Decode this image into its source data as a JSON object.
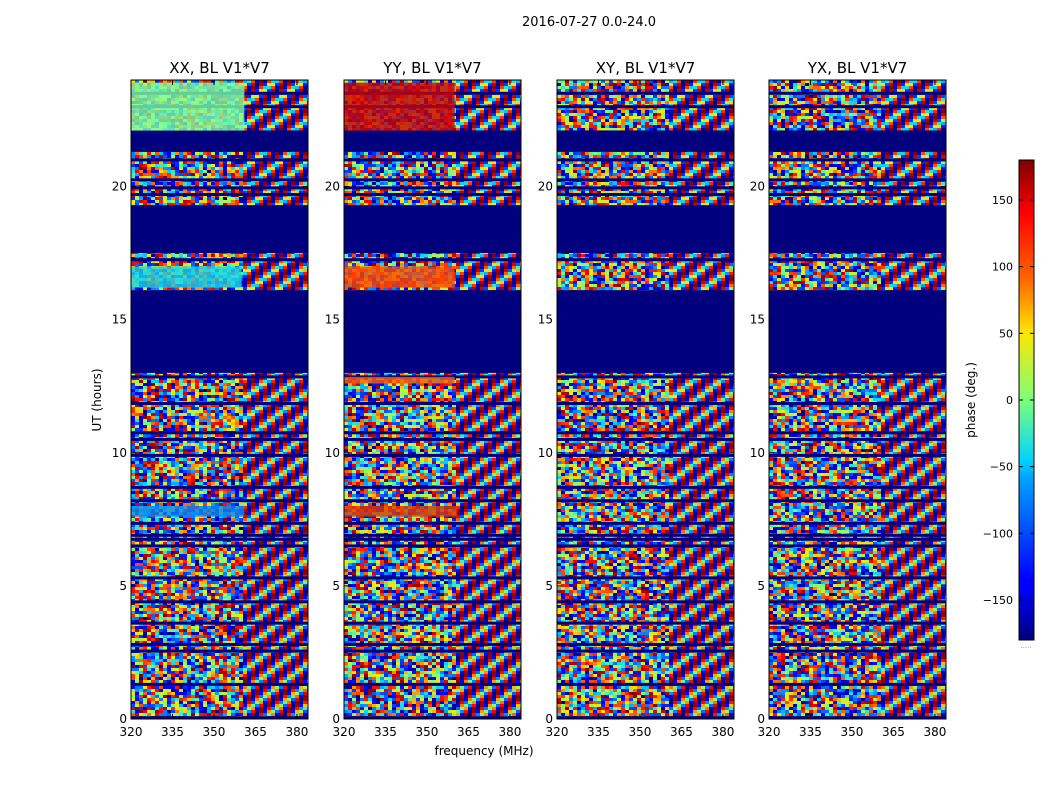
{
  "figure_title": "2016-07-27 0.0-24.0",
  "chart_data": {
    "type": "heatmap",
    "suptitle": "2016-07-27 0.0-24.0",
    "xlabel": "frequency (MHz)",
    "ylabel": "UT (hours)",
    "xlim": [
      320,
      384
    ],
    "ylim": [
      0,
      24
    ],
    "xticks": [
      320,
      335,
      350,
      365,
      380
    ],
    "yticks": [
      0,
      5,
      10,
      15,
      20
    ],
    "colormap": "jet",
    "colorbar": {
      "label": "phase (deg.)",
      "range": [
        -180,
        180
      ],
      "ticks": [
        -150,
        -100,
        -50,
        0,
        50,
        100,
        150
      ],
      "tick_labels": [
        "−150",
        "−100",
        "−50",
        "0",
        "50",
        "100",
        "150"
      ],
      "extra_label": "....."
    },
    "panels": [
      {
        "title": "XX, BL V1*V7",
        "bands": [
          {
            "y0": 13.0,
            "y1": 16.0,
            "fill": "#00007f"
          },
          {
            "y0": 17.5,
            "y1": 19.3,
            "fill": "#00007f"
          },
          {
            "y0": 21.3,
            "y1": 22.0,
            "fill": "#00007f"
          },
          {
            "y0": 16.2,
            "y1": 17.0,
            "fill": "#19d6e8",
            "x1": 360
          },
          {
            "y0": 22.1,
            "y1": 23.9,
            "fill": "#7cffa0",
            "x1": 361
          },
          {
            "y0": 7.6,
            "y1": 8.0,
            "fill": "#0088ff",
            "x1": 361
          }
        ]
      },
      {
        "title": "YY, BL V1*V7",
        "bands": [
          {
            "y0": 13.0,
            "y1": 16.0,
            "fill": "#00007f"
          },
          {
            "y0": 17.5,
            "y1": 19.3,
            "fill": "#00007f"
          },
          {
            "y0": 21.3,
            "y1": 22.0,
            "fill": "#00007f"
          },
          {
            "y0": 16.2,
            "y1": 17.0,
            "fill": "#ff4a00",
            "x1": 360
          },
          {
            "y0": 22.1,
            "y1": 23.9,
            "fill": "#cc0000",
            "x1": 360
          },
          {
            "y0": 12.6,
            "y1": 12.85,
            "fill": "#ff5a00",
            "x1": 360
          },
          {
            "y0": 7.6,
            "y1": 8.0,
            "fill": "#e03a00",
            "x1": 361
          }
        ]
      },
      {
        "title": "XY, BL V1*V7",
        "bands": [
          {
            "y0": 13.0,
            "y1": 16.0,
            "fill": "#00007f"
          },
          {
            "y0": 17.5,
            "y1": 19.3,
            "fill": "#00007f"
          },
          {
            "y0": 21.3,
            "y1": 22.0,
            "fill": "#00007f"
          }
        ]
      },
      {
        "title": "YX, BL V1*V7",
        "bands": [
          {
            "y0": 13.0,
            "y1": 16.0,
            "fill": "#00007f"
          },
          {
            "y0": 17.5,
            "y1": 19.3,
            "fill": "#00007f"
          },
          {
            "y0": 21.3,
            "y1": 22.0,
            "fill": "#00007f"
          }
        ]
      }
    ],
    "flagged_rows_ut": [
      0.05,
      1.3,
      2.55,
      2.8,
      3.6,
      4.4,
      5.3,
      6.5,
      6.75,
      6.9,
      7.35,
      8.2,
      8.7,
      9.9,
      10.5,
      10.75,
      11.85,
      12.85,
      16.05,
      17.25,
      19.7,
      19.95,
      20.25,
      21.0,
      21.5,
      22.05,
      23.0,
      23.5
    ]
  }
}
